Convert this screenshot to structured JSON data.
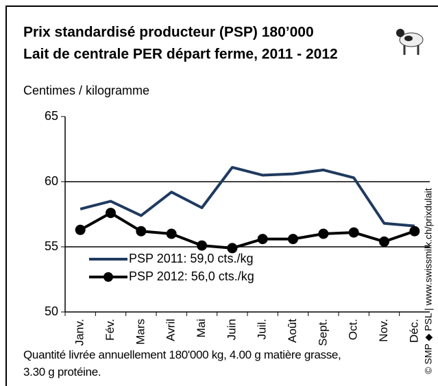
{
  "chart_data": {
    "type": "line",
    "title": "Prix standardisé producteur (PSP) 180’000",
    "subtitle": "Lait de centrale PER départ ferme, 2011 - 2012",
    "y_label": "Centimes / kilogramme",
    "categories": [
      "Janv.",
      "Fév.",
      "Mars",
      "Avril",
      "Mai",
      "Juin",
      "Juil.",
      "Août",
      "Sept.",
      "Oct.",
      "Nov.",
      "Déc."
    ],
    "series": [
      {
        "name": "PSP 2011: 59,0 cts./kg",
        "color": "#1f3a5f",
        "marker": false,
        "values": [
          57.9,
          58.5,
          57.4,
          59.2,
          58.0,
          61.1,
          60.5,
          60.6,
          60.9,
          60.3,
          56.8,
          56.6
        ]
      },
      {
        "name": "PSP 2012: 56,0 cts./kg",
        "color": "#000000",
        "marker": true,
        "values": [
          56.3,
          57.6,
          56.2,
          56.0,
          55.1,
          54.9,
          55.6,
          55.6,
          56.0,
          56.1,
          55.4,
          56.2
        ]
      }
    ],
    "ylim": [
      50,
      65
    ],
    "yticks": [
      50,
      55,
      60,
      65
    ],
    "grid": true,
    "note": "Quantité livrée annuellement 180'000 kg, 4.00 g matière grasse, 3.30 g protéine.",
    "source": "© SMP ◆ PSL | www.swissmilk.ch/prixdulait"
  }
}
